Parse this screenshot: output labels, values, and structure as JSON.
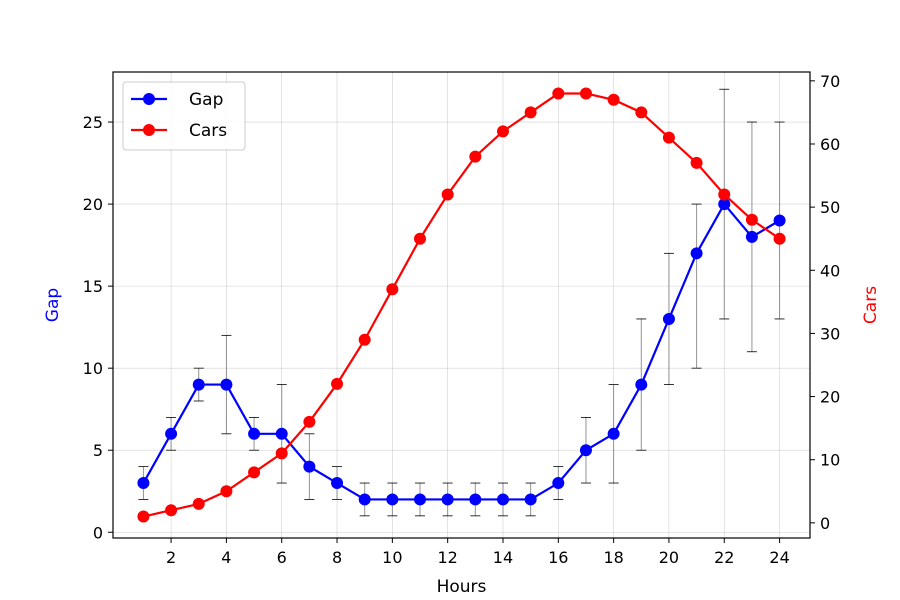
{
  "chart_data": {
    "type": "line",
    "x": [
      1,
      2,
      3,
      4,
      5,
      6,
      7,
      8,
      9,
      10,
      11,
      12,
      13,
      14,
      15,
      16,
      17,
      18,
      19,
      20,
      21,
      22,
      23,
      24
    ],
    "xlabel": "Hours",
    "x_ticks": [
      2,
      4,
      6,
      8,
      10,
      12,
      14,
      16,
      18,
      20,
      22,
      24
    ],
    "xlim": [
      -0.1,
      25.1
    ],
    "series": [
      {
        "name": "Gap",
        "axis": "left",
        "color": "#0000ff",
        "values": [
          3,
          6,
          9,
          9,
          6,
          6,
          4,
          3,
          2,
          2,
          2,
          2,
          2,
          2,
          2,
          3,
          5,
          6,
          9,
          13,
          17,
          20,
          18,
          19
        ],
        "error_low": [
          2,
          5,
          8,
          6,
          5,
          3,
          2,
          2,
          1,
          1,
          1,
          1,
          1,
          1,
          1,
          2,
          3,
          3,
          5,
          9,
          10,
          13,
          11,
          13
        ],
        "error_high": [
          4,
          7,
          10,
          12,
          7,
          9,
          6,
          4,
          3,
          3,
          3,
          3,
          3,
          3,
          3,
          4,
          7,
          9,
          13,
          17,
          20,
          27,
          25,
          25
        ]
      },
      {
        "name": "Cars",
        "axis": "right",
        "color": "#ff0000",
        "values": [
          1,
          2,
          3,
          5,
          8,
          11,
          16,
          22,
          29,
          37,
          45,
          52,
          58,
          62,
          65,
          68,
          68,
          67,
          65,
          61,
          57,
          52,
          48,
          45
        ]
      }
    ],
    "ylabel_left": "Gap",
    "ylim_left": [
      -0.35,
      28.05
    ],
    "yticks_left": [
      0,
      5,
      10,
      15,
      20,
      25
    ],
    "ylabel_right": "Cars",
    "ylim_right": [
      -2.4,
      71.4
    ],
    "yticks_right": [
      0,
      10,
      20,
      30,
      40,
      50,
      60,
      70
    ],
    "grid": true,
    "legend_position": "top-left",
    "error_bar_color": "#808080"
  }
}
